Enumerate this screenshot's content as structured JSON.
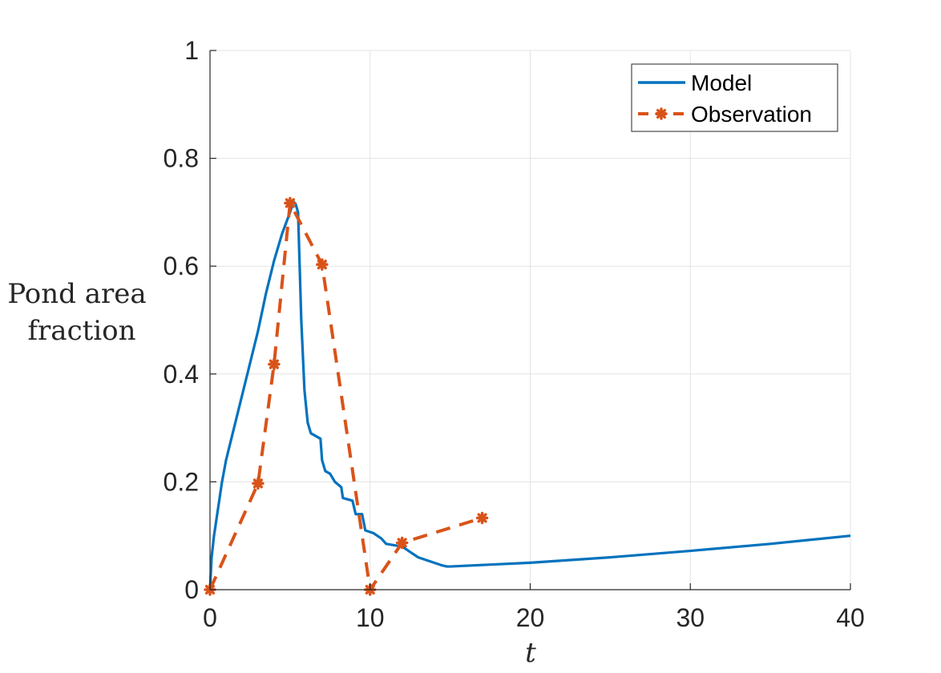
{
  "chart_data": {
    "type": "line",
    "title": "",
    "xlabel": "t",
    "ylabel_lines": [
      "Pond area",
      "fraction"
    ],
    "xlim": [
      0,
      40
    ],
    "ylim": [
      0,
      1
    ],
    "xticks": [
      0,
      10,
      20,
      30,
      40
    ],
    "yticks": [
      0,
      0.2,
      0.4,
      0.6,
      0.8,
      1
    ],
    "ytick_labels": [
      "0",
      "0.2",
      "0.4",
      "0.6",
      "0.8",
      "1"
    ],
    "grid": true,
    "legend_position": "top-right",
    "series": [
      {
        "name": "Model",
        "color": "#0072BD",
        "style": "solid",
        "marker": "none",
        "x": [
          0,
          0.1,
          0.25,
          0.5,
          0.75,
          1,
          1.5,
          2,
          2.5,
          3,
          3.5,
          4,
          4.5,
          5,
          5.2,
          5.35,
          5.5,
          5.7,
          5.9,
          6.1,
          6.3,
          6.6,
          6.9,
          7.0,
          7.2,
          7.5,
          7.8,
          8.2,
          8.3,
          8.9,
          9.1,
          9.5,
          9.7,
          10.2,
          10.7,
          11.0,
          12.0,
          12.5,
          13.0,
          13.5,
          14.0,
          14.5,
          14.8,
          15,
          20,
          25,
          30,
          35,
          40
        ],
        "y": [
          0,
          0.06,
          0.1,
          0.15,
          0.2,
          0.24,
          0.3,
          0.36,
          0.42,
          0.48,
          0.55,
          0.61,
          0.66,
          0.7,
          0.72,
          0.715,
          0.7,
          0.5,
          0.37,
          0.31,
          0.29,
          0.285,
          0.28,
          0.24,
          0.22,
          0.215,
          0.2,
          0.19,
          0.17,
          0.165,
          0.14,
          0.14,
          0.11,
          0.105,
          0.095,
          0.085,
          0.08,
          0.07,
          0.06,
          0.055,
          0.05,
          0.045,
          0.043,
          0.043,
          0.05,
          0.06,
          0.072,
          0.085,
          0.1
        ]
      },
      {
        "name": "Observation",
        "color": "#D95319",
        "style": "dashed",
        "marker": "star",
        "x": [
          0,
          3,
          4,
          5,
          7,
          10,
          12,
          17
        ],
        "y": [
          0,
          0.197,
          0.418,
          0.717,
          0.603,
          0,
          0.087,
          0.133
        ]
      }
    ]
  }
}
